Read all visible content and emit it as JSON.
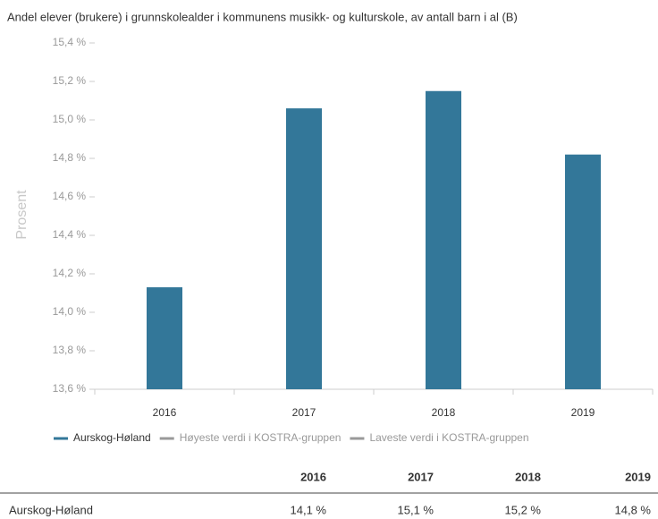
{
  "chart_data": {
    "type": "bar",
    "title": "Andel elever (brukere) i grunnskolealder i kommunens musikk- og kulturskole, av antall barn i al (B)",
    "y_label": "Prosent",
    "categories": [
      "2016",
      "2017",
      "2018",
      "2019"
    ],
    "series": [
      {
        "name": "Aurskog-Høland",
        "color": "#337799",
        "values": [
          14.13,
          15.06,
          15.15,
          14.82
        ],
        "value_labels": [
          "14,1 %",
          "15,1 %",
          "15,2 %",
          "14,8 %"
        ]
      },
      {
        "name": "Høyeste verdi i KOSTRA-gruppen",
        "color": "#999999",
        "values": [
          null,
          null,
          null,
          null
        ]
      },
      {
        "name": "Laveste verdi i KOSTRA-gruppen",
        "color": "#999999",
        "values": [
          null,
          null,
          null,
          null
        ]
      }
    ],
    "ylim": [
      13.6,
      15.4
    ],
    "yticks": [
      {
        "value": 13.6,
        "label": "13,6 %"
      },
      {
        "value": 13.8,
        "label": "13,8 %"
      },
      {
        "value": 14.0,
        "label": "14,0 %"
      },
      {
        "value": 14.2,
        "label": "14,2 %"
      },
      {
        "value": 14.4,
        "label": "14,4 %"
      },
      {
        "value": 14.6,
        "label": "14,6 %"
      },
      {
        "value": 14.8,
        "label": "14,8 %"
      },
      {
        "value": 15.0,
        "label": "15,0 %"
      },
      {
        "value": 15.2,
        "label": "15,2 %"
      },
      {
        "value": 15.4,
        "label": "15,4 %"
      }
    ],
    "grid": false,
    "legend": "bottom"
  }
}
